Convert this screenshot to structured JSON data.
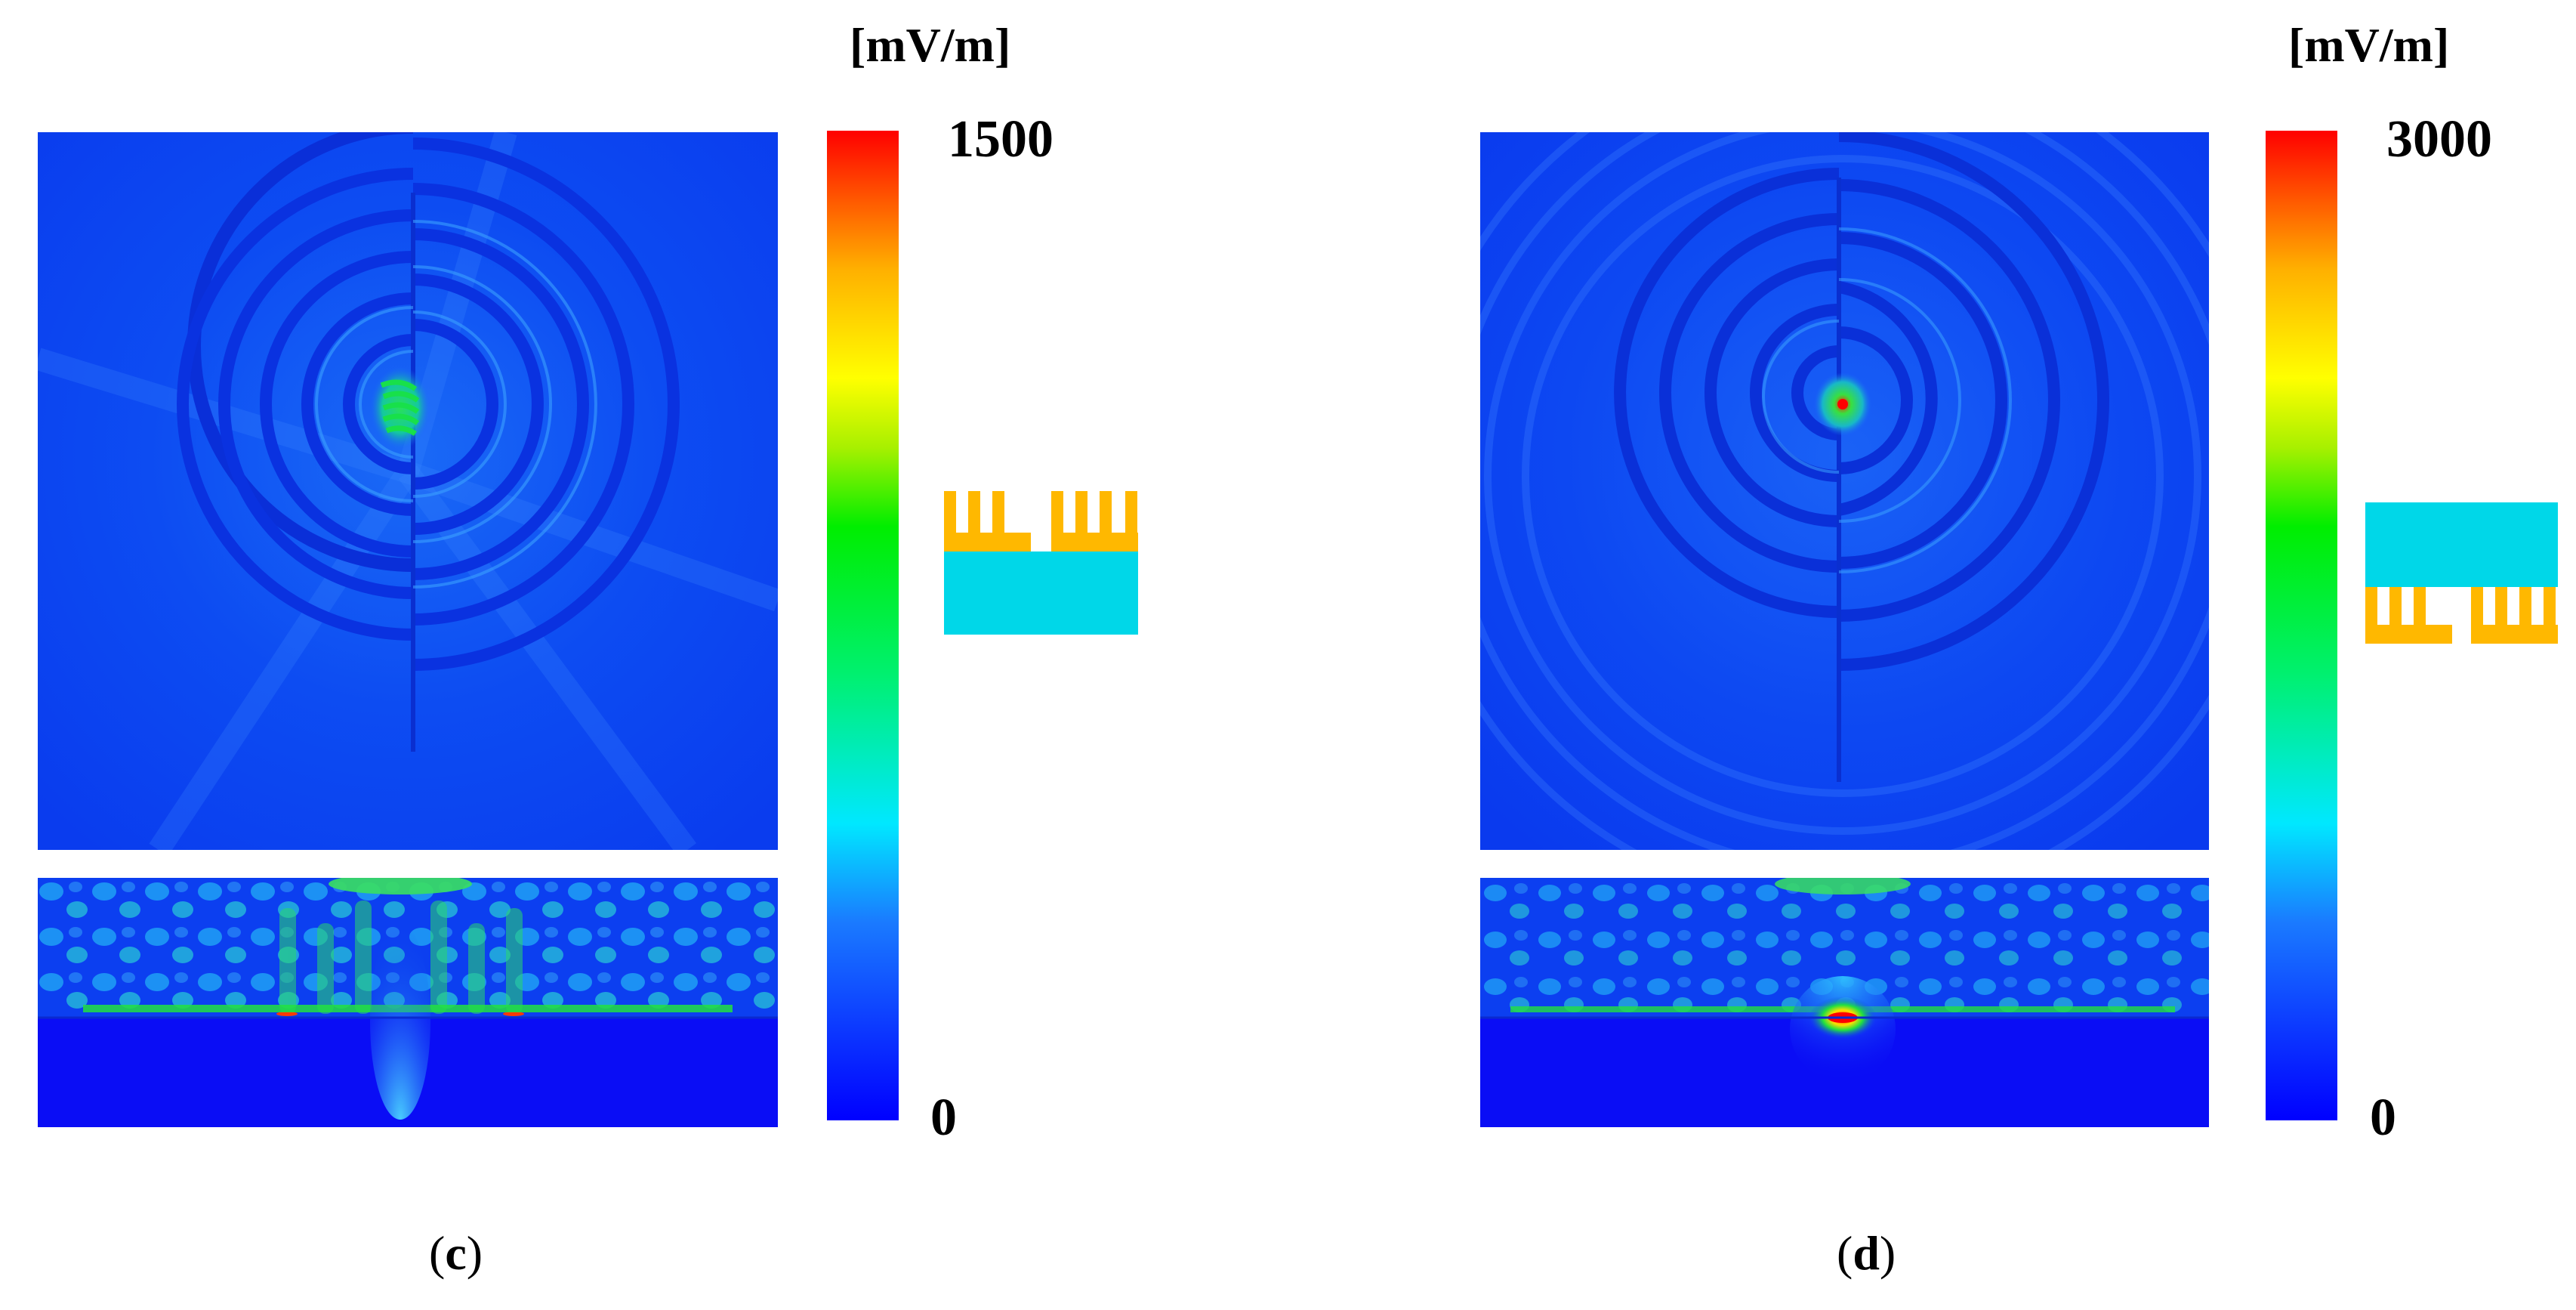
{
  "panels": [
    {
      "colorbar": {
        "unit": "[mV/m]",
        "max": "1500",
        "min": "0"
      },
      "caption": {
        "open": "(",
        "letter": "c",
        "close": ")"
      }
    },
    {
      "colorbar": {
        "unit": "[mV/m]",
        "max": "3000",
        "min": "0"
      },
      "caption": {
        "open": "(",
        "letter": "d",
        "close": ")"
      }
    }
  ],
  "colors": {
    "background_field": "#0b3ff0",
    "substrate": "#00d7e8",
    "metal_grating": "#ffb800",
    "colorbar_stops": [
      "#0000ff",
      "#00e8ff",
      "#00f000",
      "#ffff00",
      "#ffb000",
      "#ff0000"
    ]
  }
}
